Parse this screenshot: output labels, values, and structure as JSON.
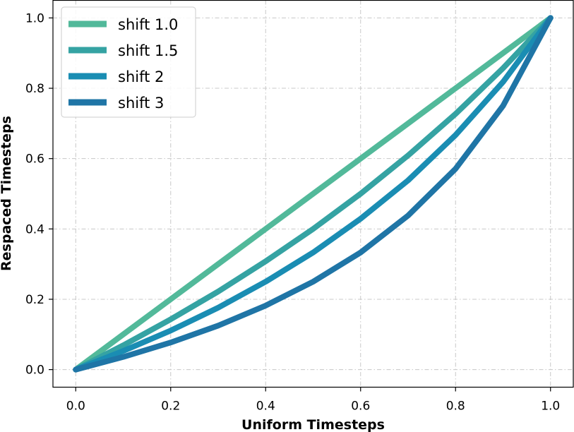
{
  "chart_data": {
    "type": "line",
    "xlabel": "Uniform Timesteps",
    "ylabel": "Respaced Timesteps",
    "xlim": [
      -0.048,
      1.048
    ],
    "ylim": [
      -0.05,
      1.05
    ],
    "x_ticks": [
      0.0,
      0.2,
      0.4,
      0.6,
      0.8,
      1.0
    ],
    "x_tick_labels": [
      "0.0",
      "0.2",
      "0.4",
      "0.6",
      "0.8",
      "1.0"
    ],
    "y_ticks": [
      0.0,
      0.2,
      0.4,
      0.6,
      0.8,
      1.0
    ],
    "y_tick_labels": [
      "0.0",
      "0.2",
      "0.4",
      "0.6",
      "0.8",
      "1.0"
    ],
    "grid": true,
    "legend_position": "top-left",
    "x": [
      0.0,
      0.1,
      0.2,
      0.3,
      0.4,
      0.5,
      0.6,
      0.7,
      0.8,
      0.9,
      1.0
    ],
    "series": [
      {
        "name": "shift 1.0",
        "color": "#52b99a",
        "values": [
          0.0,
          0.1,
          0.2,
          0.3,
          0.4,
          0.5,
          0.6,
          0.7,
          0.8,
          0.9,
          1.0
        ]
      },
      {
        "name": "shift 1.5",
        "color": "#35a3a3",
        "values": [
          0.0,
          0.069,
          0.143,
          0.222,
          0.308,
          0.4,
          0.5,
          0.609,
          0.727,
          0.857,
          1.0
        ]
      },
      {
        "name": "shift 2",
        "color": "#1a8db3",
        "values": [
          0.0,
          0.053,
          0.111,
          0.176,
          0.25,
          0.333,
          0.429,
          0.538,
          0.667,
          0.818,
          1.0
        ]
      },
      {
        "name": "shift 3",
        "color": "#1f75a6",
        "values": [
          0.0,
          0.036,
          0.077,
          0.125,
          0.182,
          0.25,
          0.333,
          0.438,
          0.571,
          0.75,
          1.0
        ]
      }
    ]
  }
}
